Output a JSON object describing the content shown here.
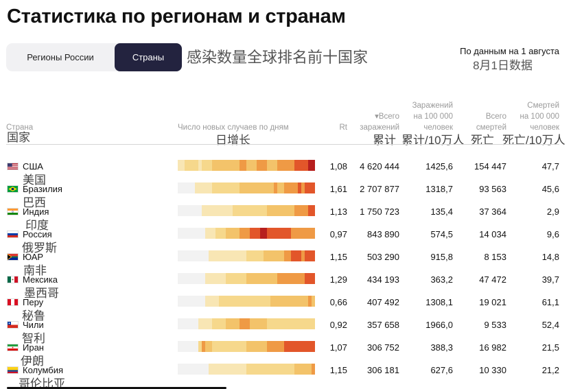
{
  "page": {
    "title": "Статистика по регионам и странам",
    "tabs": [
      {
        "label": "Регионы России",
        "active": false
      },
      {
        "label": "Страны",
        "active": true
      }
    ],
    "caption_cn": "感染数量全球排名前十国家",
    "date_ru": "По данным на 1 августа",
    "date_cn": "8月1日数据"
  },
  "table": {
    "headers": {
      "country": "Страна",
      "country_cn": "国家",
      "daily": "Число новых случаев по дням",
      "daily_cn": "日增长",
      "rt": "Rt",
      "total_l1": "▾Всего",
      "total_l2": "заражений",
      "total_cn": "累计",
      "per100k_l1": "Заражений",
      "per100k_l2": "на 100 000",
      "per100k_l3": "человек",
      "per100k_cn": "累计/10万人",
      "deaths_l1": "Всего",
      "deaths_l2": "смертей",
      "deaths_cn": "死亡",
      "deaths100k_l1": "Смертей",
      "deaths100k_l2": "на 100 000",
      "deaths100k_l3": "человек",
      "deaths100k_cn": "死亡/10万人"
    }
  },
  "chart_data": {
    "type": "table",
    "columns": [
      "Страна",
      "Число новых случаев по дням",
      "Rt",
      "Всего заражений",
      "Заражений на 100 000 человек",
      "Всего смертей",
      "Смертей на 100 000 человек"
    ],
    "heat_colors": [
      "#f2f2f2",
      "#f8e6b4",
      "#f6d88c",
      "#f3c36a",
      "#ef9a45",
      "#e2562a",
      "#b71f1e"
    ],
    "rows": [
      {
        "flag": "us",
        "name": "США",
        "name_cn": "美国",
        "rt": "1,08",
        "total": "4 620 444",
        "per100k": "1425,6",
        "deaths": "154 447",
        "deaths100k": "47,7",
        "levels": [
          1,
          1,
          2,
          2,
          2,
          2,
          1,
          2,
          2,
          2,
          3,
          3,
          3,
          3,
          3,
          3,
          3,
          3,
          4,
          4,
          3,
          3,
          3,
          4,
          4,
          4,
          3,
          3,
          3,
          4,
          4,
          4,
          4,
          4,
          5,
          5,
          5,
          5,
          6,
          6
        ]
      },
      {
        "flag": "br",
        "name": "Бразилия",
        "name_cn": "巴西",
        "rt": "1,61",
        "total": "2 707 877",
        "per100k": "1318,7",
        "deaths": "93 563",
        "deaths100k": "45,6",
        "levels": [
          0,
          0,
          0,
          0,
          0,
          1,
          1,
          1,
          1,
          1,
          2,
          2,
          2,
          2,
          2,
          2,
          2,
          2,
          3,
          3,
          3,
          3,
          3,
          3,
          3,
          3,
          3,
          3,
          4,
          3,
          3,
          4,
          4,
          4,
          4,
          5,
          4,
          5,
          5,
          5
        ]
      },
      {
        "flag": "in",
        "name": "Индия",
        "name_cn": "印度",
        "rt": "1,13",
        "total": "1 750 723",
        "per100k": "135,4",
        "deaths": "37 364",
        "deaths100k": "2,9",
        "levels": [
          0,
          0,
          0,
          0,
          0,
          0,
          0,
          1,
          1,
          1,
          1,
          1,
          1,
          1,
          1,
          1,
          2,
          2,
          2,
          2,
          2,
          2,
          2,
          2,
          2,
          2,
          3,
          3,
          3,
          3,
          3,
          3,
          3,
          3,
          4,
          4,
          4,
          4,
          5,
          5
        ]
      },
      {
        "flag": "ru",
        "name": "Россия",
        "name_cn": "俄罗斯",
        "rt": "0,97",
        "total": "843 890",
        "per100k": "574,5",
        "deaths": "14 034",
        "deaths100k": "9,6",
        "levels": [
          0,
          0,
          0,
          0,
          0,
          0,
          0,
          0,
          1,
          1,
          1,
          2,
          2,
          2,
          3,
          3,
          3,
          3,
          4,
          4,
          4,
          5,
          5,
          5,
          6,
          6,
          5,
          5,
          5,
          5,
          5,
          5,
          5,
          4,
          4,
          4,
          4,
          4,
          4,
          4
        ]
      },
      {
        "flag": "za",
        "name": "ЮАР",
        "name_cn": "南非",
        "rt": "1,15",
        "total": "503 290",
        "per100k": "915,8",
        "deaths": "8 153",
        "deaths100k": "14,8",
        "levels": [
          0,
          0,
          0,
          0,
          0,
          0,
          0,
          0,
          0,
          1,
          1,
          1,
          1,
          1,
          1,
          1,
          1,
          1,
          1,
          1,
          2,
          2,
          2,
          2,
          2,
          3,
          3,
          3,
          3,
          3,
          3,
          4,
          4,
          5,
          5,
          5,
          4,
          5,
          5,
          5
        ]
      },
      {
        "flag": "mx",
        "name": "Мексика",
        "name_cn": "墨西哥",
        "rt": "1,29",
        "total": "434 193",
        "per100k": "363,2",
        "deaths": "47 472",
        "deaths100k": "39,7",
        "levels": [
          0,
          0,
          0,
          0,
          0,
          0,
          0,
          0,
          1,
          1,
          1,
          1,
          1,
          1,
          2,
          2,
          2,
          2,
          2,
          2,
          3,
          3,
          3,
          3,
          3,
          3,
          3,
          3,
          3,
          4,
          4,
          4,
          4,
          4,
          4,
          4,
          4,
          5,
          5,
          5
        ]
      },
      {
        "flag": "pe",
        "name": "Перу",
        "name_cn": "秘鲁",
        "rt": "0,66",
        "total": "407 492",
        "per100k": "1308,1",
        "deaths": "19 021",
        "deaths100k": "61,1",
        "levels": [
          0,
          0,
          0,
          0,
          0,
          0,
          0,
          0,
          1,
          1,
          1,
          1,
          2,
          2,
          2,
          2,
          2,
          2,
          2,
          2,
          2,
          2,
          2,
          2,
          2,
          2,
          2,
          3,
          3,
          3,
          3,
          3,
          3,
          3,
          3,
          3,
          3,
          3,
          4,
          3
        ]
      },
      {
        "flag": "cl",
        "name": "Чили",
        "name_cn": "智利",
        "rt": "0,92",
        "total": "357 658",
        "per100k": "1966,0",
        "deaths": "9 533",
        "deaths100k": "52,4",
        "levels": [
          0,
          0,
          0,
          0,
          0,
          0,
          1,
          1,
          1,
          1,
          2,
          2,
          2,
          2,
          3,
          3,
          3,
          3,
          4,
          4,
          4,
          3,
          3,
          3,
          3,
          3,
          2,
          2,
          2,
          2,
          2,
          2,
          2,
          2,
          2,
          2,
          2,
          2,
          2,
          2
        ]
      },
      {
        "flag": "ir",
        "name": "Иран",
        "name_cn": "伊朗",
        "rt": "1,07",
        "total": "306 752",
        "per100k": "388,3",
        "deaths": "16 982",
        "deaths100k": "21,5",
        "levels": [
          0,
          0,
          0,
          0,
          0,
          0,
          2,
          4,
          3,
          3,
          2,
          2,
          2,
          2,
          2,
          2,
          2,
          2,
          2,
          2,
          3,
          3,
          3,
          3,
          3,
          3,
          4,
          4,
          4,
          4,
          4,
          5,
          5,
          5,
          5,
          5,
          5,
          5,
          5,
          5
        ]
      },
      {
        "flag": "co",
        "name": "Колумбия",
        "name_cn": "哥伦比亚",
        "rt": "1,15",
        "total": "306 181",
        "per100k": "627,6",
        "deaths": "10 330",
        "deaths100k": "21,2",
        "levels": [
          0,
          0,
          0,
          0,
          0,
          0,
          0,
          0,
          0,
          1,
          1,
          1,
          1,
          1,
          1,
          1,
          1,
          1,
          1,
          1,
          2,
          2,
          2,
          2,
          2,
          2,
          2,
          2,
          2,
          2,
          2,
          2,
          2,
          2,
          3,
          3,
          3,
          3,
          3,
          4
        ]
      }
    ]
  }
}
